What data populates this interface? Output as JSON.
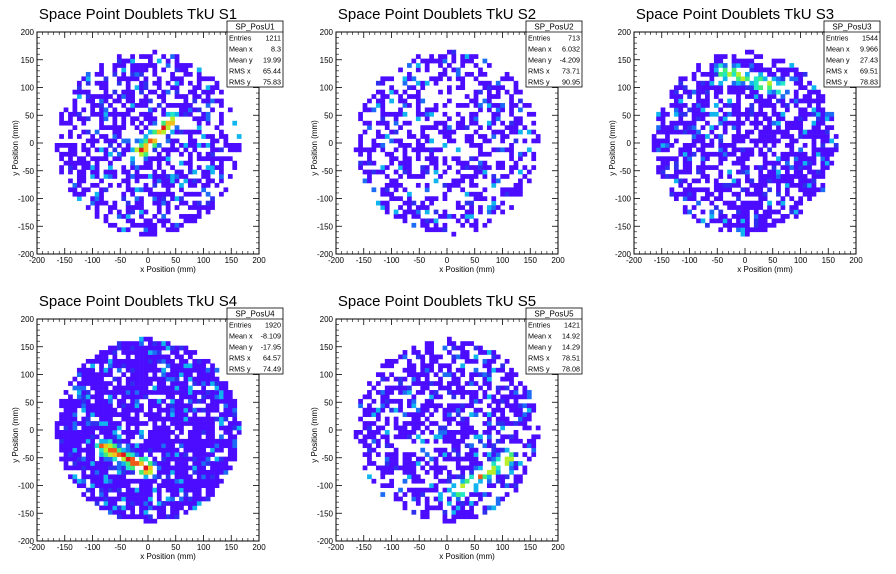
{
  "chart_data": [
    {
      "type": "heatmap",
      "title": "Space Point Doublets TkU S1",
      "xlabel": "x Position (mm)",
      "ylabel": "y Position (mm)",
      "xlim": [
        -200,
        200
      ],
      "ylim": [
        -200,
        200
      ],
      "xticks": [
        -200,
        -150,
        -100,
        -50,
        0,
        50,
        100,
        150,
        200
      ],
      "yticks": [
        -200,
        -150,
        -100,
        -50,
        0,
        50,
        100,
        150,
        200
      ],
      "stats": {
        "name": "SP_PosU1",
        "rows": [
          [
            "Entries",
            "1211"
          ],
          [
            "Mean x",
            "8.3"
          ],
          [
            "Mean y",
            "19.99"
          ],
          [
            "RMS x",
            "65.44"
          ],
          [
            "RMS y",
            "75.83"
          ]
        ]
      },
      "hotspot": {
        "x0": -20,
        "y0": -20,
        "x1": 40,
        "y1": 40,
        "intensity": 0.8
      },
      "distribution": {
        "radius": 165,
        "occupancy": 0.55,
        "seed": 11
      }
    },
    {
      "type": "heatmap",
      "title": "Space Point Doublets TkU S2",
      "xlabel": "x Position (mm)",
      "ylabel": "y Position (mm)",
      "xlim": [
        -200,
        200
      ],
      "ylim": [
        -200,
        200
      ],
      "xticks": [
        -200,
        -150,
        -100,
        -50,
        0,
        50,
        100,
        150,
        200
      ],
      "yticks": [
        -200,
        -150,
        -100,
        -50,
        0,
        50,
        100,
        150,
        200
      ],
      "stats": {
        "name": "SP_PosU2",
        "rows": [
          [
            "Entries",
            "713"
          ],
          [
            "Mean x",
            "6.032"
          ],
          [
            "Mean y",
            "-4.209"
          ],
          [
            "RMS x",
            "73.71"
          ],
          [
            "RMS y",
            "90.95"
          ]
        ]
      },
      "hotspot": null,
      "distribution": {
        "radius": 165,
        "occupancy": 0.45,
        "seed": 23
      }
    },
    {
      "type": "heatmap",
      "title": "Space Point Doublets TkU S3",
      "xlabel": "x Position (mm)",
      "ylabel": "y Position (mm)",
      "xlim": [
        -200,
        200
      ],
      "ylim": [
        -200,
        200
      ],
      "xticks": [
        -200,
        -150,
        -100,
        -50,
        0,
        50,
        100,
        150,
        200
      ],
      "yticks": [
        -200,
        -150,
        -100,
        -50,
        0,
        50,
        100,
        150,
        200
      ],
      "stats": {
        "name": "SP_PosU3",
        "rows": [
          [
            "Entries",
            "1544"
          ],
          [
            "Mean x",
            "9.966"
          ],
          [
            "Mean y",
            "27.43"
          ],
          [
            "RMS x",
            "69.51"
          ],
          [
            "RMS y",
            "78.83"
          ]
        ]
      },
      "hotspot": {
        "x0": -40,
        "y0": 130,
        "x1": 60,
        "y1": 100,
        "intensity": 0.55
      },
      "distribution": {
        "radius": 165,
        "occupancy": 0.62,
        "seed": 37
      }
    },
    {
      "type": "heatmap",
      "title": "Space Point Doublets TkU S4",
      "xlabel": "x Position (mm)",
      "ylabel": "y Position (mm)",
      "xlim": [
        -200,
        200
      ],
      "ylim": [
        -200,
        200
      ],
      "xticks": [
        -200,
        -150,
        -100,
        -50,
        0,
        50,
        100,
        150,
        200
      ],
      "yticks": [
        -200,
        -150,
        -100,
        -50,
        0,
        50,
        100,
        150,
        200
      ],
      "stats": {
        "name": "SP_PosU4",
        "rows": [
          [
            "Entries",
            "1920"
          ],
          [
            "Mean x",
            "-8.109"
          ],
          [
            "Mean y",
            "-17.95"
          ],
          [
            "RMS x",
            "64.57"
          ],
          [
            "RMS y",
            "74.49"
          ]
        ]
      },
      "hotspot": {
        "x0": -80,
        "y0": -30,
        "x1": 0,
        "y1": -70,
        "intensity": 0.85
      },
      "distribution": {
        "radius": 165,
        "occupancy": 0.8,
        "seed": 53
      }
    },
    {
      "type": "heatmap",
      "title": "Space Point Doublets TkU S5",
      "xlabel": "x Position (mm)",
      "ylabel": "y Position (mm)",
      "xlim": [
        -200,
        200
      ],
      "ylim": [
        -200,
        200
      ],
      "xticks": [
        -200,
        -150,
        -100,
        -50,
        0,
        50,
        100,
        150,
        200
      ],
      "yticks": [
        -200,
        -150,
        -100,
        -50,
        0,
        50,
        100,
        150,
        200
      ],
      "stats": {
        "name": "SP_PosU5",
        "rows": [
          [
            "Entries",
            "1421"
          ],
          [
            "Mean x",
            "14.92"
          ],
          [
            "Mean y",
            "14.29"
          ],
          [
            "RMS x",
            "78.51"
          ],
          [
            "RMS y",
            "78.08"
          ]
        ]
      },
      "hotspot": {
        "x0": 20,
        "y0": -110,
        "x1": 110,
        "y1": -50,
        "intensity": 0.7
      },
      "distribution": {
        "radius": 165,
        "occupancy": 0.55,
        "seed": 71
      }
    }
  ],
  "palette": [
    "#4b0cff",
    "#2f2ff0",
    "#1d6cf6",
    "#10b5f0",
    "#22e6c8",
    "#3fee7a",
    "#b9ef2a",
    "#f2c01c",
    "#f05a16",
    "#e3141a"
  ]
}
